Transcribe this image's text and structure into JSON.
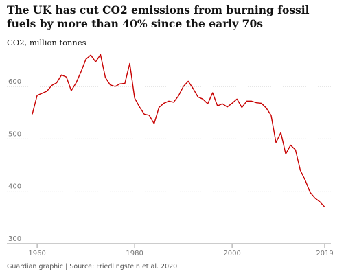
{
  "title": "The UK has cut CO2 emissions from burning fossil fuels by more than 40% since the early 70s",
  "subtitle": "CO2, million tonnes",
  "source": "Guardian graphic | Source: Friedlingstein et al. 2020",
  "chart_data": {
    "type": "line",
    "title": "The UK has cut CO2 emissions from burning fossil fuels by more than 40% since the early 70s",
    "ylabel": "CO2, million tonnes",
    "xlabel": "",
    "ylim": [
      300,
      680
    ],
    "xlim": [
      1957,
      2020
    ],
    "yticks": [
      300,
      400,
      500,
      600
    ],
    "xticks": [
      {
        "value": 1960,
        "label": "1960"
      },
      {
        "value": 1980,
        "label": "1980"
      },
      {
        "value": 2000,
        "label": "2000"
      },
      {
        "value": 2019,
        "label": "2019"
      }
    ],
    "grid": "horizontal dotted",
    "color": "#c70000",
    "series": [
      {
        "x": [
          1959,
          1960,
          1961,
          1962,
          1963,
          1964,
          1965,
          1966,
          1967,
          1968,
          1969,
          1970,
          1971,
          1972,
          1973,
          1974,
          1975,
          1976,
          1977,
          1978,
          1979,
          1980,
          1981,
          1982,
          1983,
          1984,
          1985,
          1986,
          1987,
          1988,
          1989,
          1990,
          1991,
          1992,
          1993,
          1994,
          1995,
          1996,
          1997,
          1998,
          1999,
          2000,
          2001,
          2002,
          2003,
          2004,
          2005,
          2006,
          2007,
          2008,
          2009,
          2010,
          2011,
          2012,
          2013,
          2014,
          2015,
          2016,
          2017,
          2018,
          2019
        ],
        "values": [
          547,
          583,
          587,
          591,
          602,
          607,
          622,
          618,
          592,
          607,
          628,
          652,
          660,
          647,
          661,
          617,
          603,
          600,
          605,
          606,
          644,
          578,
          561,
          547,
          545,
          529,
          560,
          568,
          572,
          570,
          582,
          600,
          610,
          596,
          580,
          576,
          567,
          588,
          563,
          567,
          561,
          568,
          576,
          560,
          572,
          572,
          569,
          568,
          559,
          545,
          493,
          512,
          471,
          488,
          479,
          440,
          421,
          398,
          387,
          380,
          370
        ]
      }
    ]
  }
}
